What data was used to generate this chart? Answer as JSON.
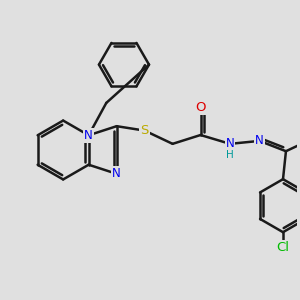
{
  "bg_color": "#e0e0e0",
  "bond_color": "#1a1a1a",
  "bond_width": 1.8,
  "atom_colors": {
    "N": "#0000ee",
    "S": "#bbaa00",
    "O": "#dd0000",
    "Cl": "#00bb00",
    "H": "#009999",
    "C": "#1a1a1a"
  },
  "font_size": 8.5,
  "fig_size": [
    3.0,
    3.0
  ],
  "dpi": 100
}
